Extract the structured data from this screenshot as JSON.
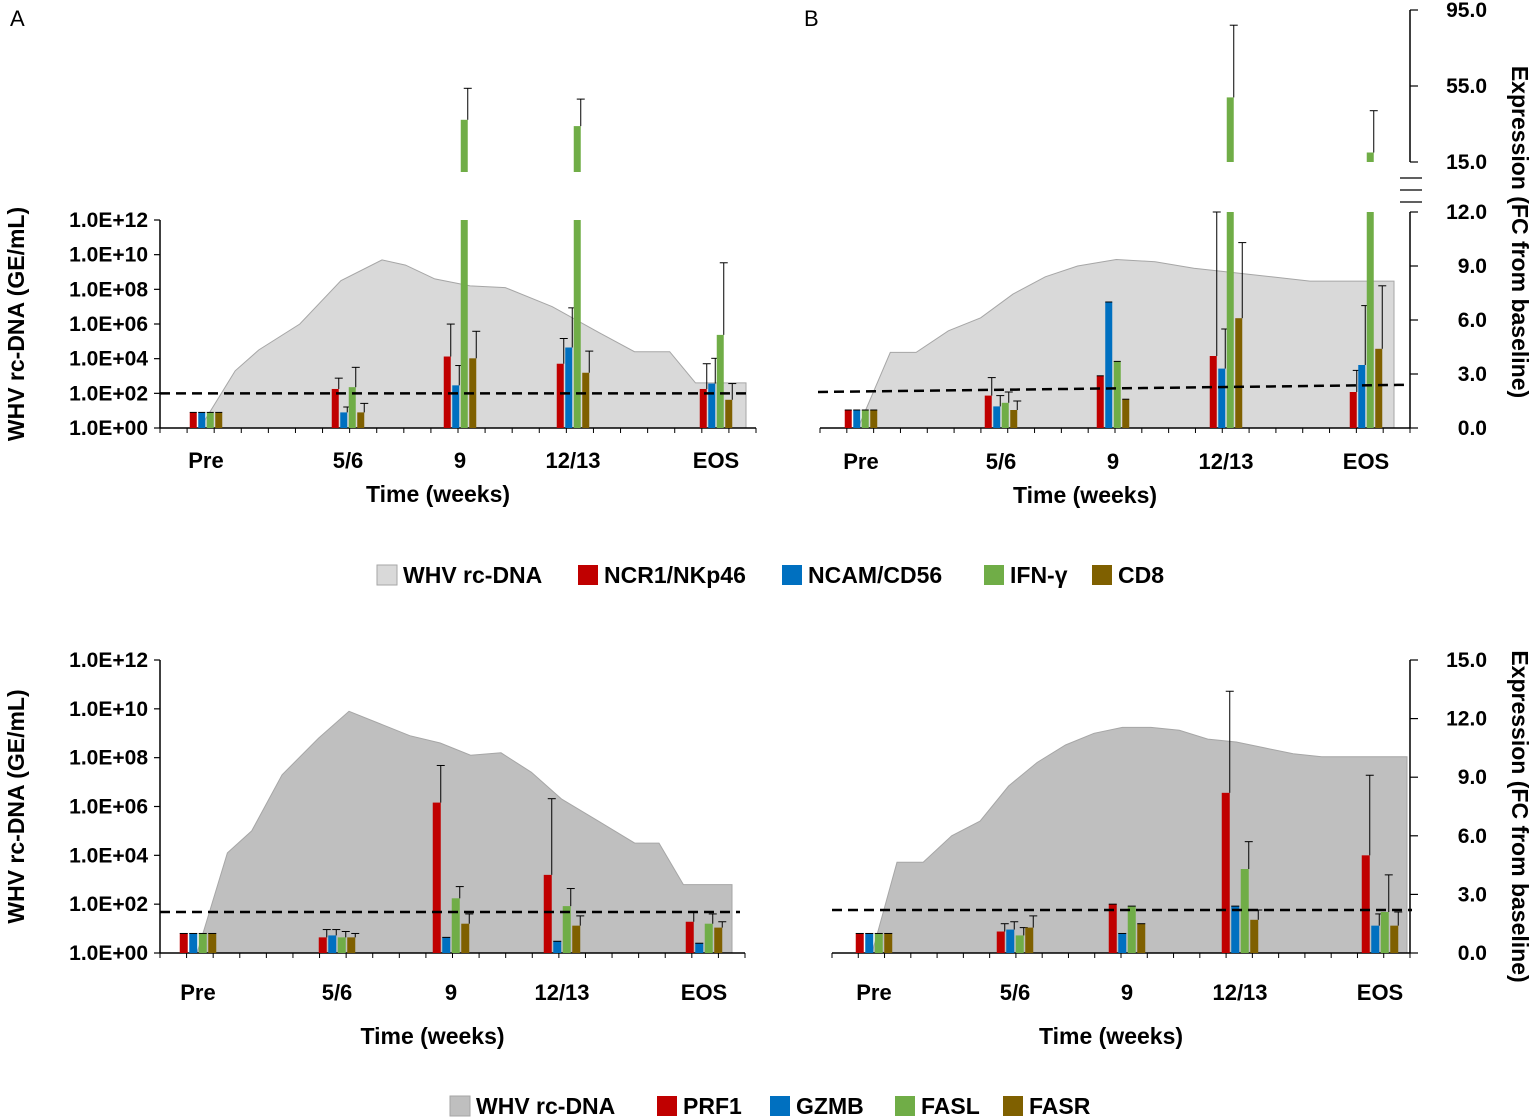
{
  "chart_data": [
    {
      "id": "A-top",
      "type": "bar",
      "panel_letter": "A",
      "xlabel": "Time (weeks)",
      "ylabel": "WHV rc-DNA (GE/mL)",
      "y_scale": "log10",
      "ylim": [
        1,
        1000000000000.0
      ],
      "yticks": [
        "1.0E+00",
        "1.0E+02",
        "1.0E+04",
        "1.0E+06",
        "1.0E+08",
        "1.0E+10",
        "1.0E+12"
      ],
      "categories": [
        "Pre",
        "5/6",
        "9",
        "12/13",
        "EOS"
      ],
      "area": {
        "name": "WHV rc-DNA",
        "color": "#d9d9d9",
        "x": [
          0,
          0.3,
          0.5,
          0.85,
          1.2,
          1.55,
          1.75,
          2.0,
          2.3,
          2.6,
          3.0,
          3.4,
          3.7,
          4.0,
          4.22,
          4.4,
          4.65
        ],
        "log10": [
          0,
          3.3,
          4.5,
          6.0,
          8.5,
          9.7,
          9.4,
          8.6,
          8.2,
          8.1,
          7.0,
          5.5,
          4.4,
          4.4,
          2.6,
          2.6,
          2.6
        ]
      },
      "bar_scale": "log10",
      "bar_scale_note": "bars plotted on primary log axis",
      "baseline_log10": 2,
      "break_region": {
        "gap_low": 12.0,
        "gap_high": 14.2,
        "top_max": 24.5
      },
      "series": [
        {
          "name": "NCR1/NKp46",
          "color": "#c00000",
          "values": [
            1,
            2.3,
            4.1,
            3.7,
            2.3
          ],
          "errors": [
            0,
            0.6,
            1.8,
            1.4,
            1.4
          ]
        },
        {
          "name": "NCAM/CD56",
          "color": "#0070c0",
          "values": [
            1,
            1,
            2.5,
            4.6,
            2.6
          ],
          "errors": [
            0,
            0.3,
            1.1,
            2.2,
            1.4
          ]
        },
        {
          "name": "IFN-γ",
          "color": "#70ad47",
          "values": [
            1,
            2.4,
            20.0,
            19.3,
            5.3
          ],
          "errors": [
            0,
            1.1,
            3.5,
            3.0,
            4.0
          ]
        },
        {
          "name": "CD8",
          "color": "#7f6000",
          "values": [
            1,
            1,
            4.0,
            3.2,
            1.7
          ],
          "errors": [
            0,
            0.5,
            1.5,
            1.2,
            0.9
          ]
        }
      ]
    },
    {
      "id": "B-top",
      "type": "bar",
      "panel_letter": "B",
      "xlabel": "Time (weeks)",
      "y2label": "Expression (FC from baseline)",
      "ylim": [
        0,
        12
      ],
      "y2ticks": [
        "0.0",
        "3.0",
        "6.0",
        "9.0",
        "12.0"
      ],
      "y2_upper_ticks": [
        "15.0",
        "55.0",
        "95.0"
      ],
      "categories": [
        "Pre",
        "5/6",
        "9",
        "12/13",
        "EOS"
      ],
      "area": {
        "name": "WHV rc-DNA",
        "color": "#d9d9d9",
        "x": [
          0,
          0.25,
          0.45,
          0.7,
          0.95,
          1.2,
          1.45,
          1.7,
          2.0,
          2.3,
          2.6,
          2.9,
          3.2,
          3.5,
          3.8,
          4.0,
          4.15
        ],
        "frac": [
          0,
          0.35,
          0.35,
          0.45,
          0.51,
          0.62,
          0.7,
          0.75,
          0.78,
          0.77,
          0.74,
          0.72,
          0.7,
          0.68,
          0.68,
          0.68,
          0.68
        ]
      },
      "baseline": 2.0,
      "baseline_end": 2.4,
      "series": [
        {
          "name": "NCR1/NKp46",
          "color": "#c00000",
          "values": [
            1,
            1.8,
            2.9,
            4.0,
            2.0
          ],
          "errors": [
            0,
            1.0,
            0,
            9.0,
            1.2
          ]
        },
        {
          "name": "NCAM/CD56",
          "color": "#0070c0",
          "values": [
            1,
            1.2,
            7.0,
            3.3,
            3.5
          ],
          "errors": [
            0,
            0.6,
            0,
            2.2,
            3.3
          ]
        },
        {
          "name": "IFN-γ",
          "color": "#70ad47",
          "values": [
            1,
            1.4,
            3.7,
            49,
            20
          ],
          "errors": [
            0,
            0.6,
            0,
            38,
            22
          ]
        },
        {
          "name": "CD8",
          "color": "#7f6000",
          "values": [
            1,
            1.0,
            1.6,
            6.1,
            4.4
          ],
          "errors": [
            0,
            0.5,
            0,
            4.2,
            3.5
          ]
        }
      ]
    },
    {
      "id": "A-bottom",
      "type": "bar",
      "xlabel": "Time (weeks)",
      "ylabel": "WHV rc-DNA (GE/mL)",
      "y_scale": "log10",
      "ylim": [
        1,
        1000000000000.0
      ],
      "yticks": [
        "1.0E+00",
        "1.0E+02",
        "1.0E+04",
        "1.0E+06",
        "1.0E+08",
        "1.0E+10",
        "1.0E+12"
      ],
      "categories": [
        "Pre",
        "5/6",
        "9",
        "12/13",
        "EOS"
      ],
      "area": {
        "name": "WHV rc-DNA",
        "color": "#bfbfbf",
        "x": [
          0,
          0.25,
          0.45,
          0.7,
          1.0,
          1.25,
          1.5,
          1.75,
          2.0,
          2.25,
          2.5,
          2.75,
          3.0,
          3.3,
          3.6,
          3.8,
          4.0,
          4.2,
          4.4
        ],
        "log10": [
          0,
          4.1,
          5.0,
          7.3,
          8.8,
          9.9,
          9.4,
          8.9,
          8.6,
          8.1,
          8.2,
          7.4,
          6.3,
          5.4,
          4.5,
          4.5,
          2.8,
          2.8,
          2.8
        ]
      },
      "bar_scale": "linear_secondary",
      "y2_range": [
        0,
        15
      ],
      "baseline": 2.1,
      "series": [
        {
          "name": "PRF1",
          "color": "#c00000",
          "values": [
            1,
            0.8,
            7.7,
            4.0,
            1.6
          ],
          "errors": [
            0,
            0.4,
            1.9,
            3.9,
            0.5
          ]
        },
        {
          "name": "GZMB",
          "color": "#0070c0",
          "values": [
            1,
            0.9,
            0.8,
            0.6,
            0.5
          ],
          "errors": [
            0,
            0.3,
            0,
            0,
            0
          ]
        },
        {
          "name": "FASL",
          "color": "#70ad47",
          "values": [
            1,
            0.8,
            2.8,
            2.4,
            1.5
          ],
          "errors": [
            0,
            0.3,
            0.6,
            0.9,
            0.5
          ]
        },
        {
          "name": "FASR",
          "color": "#7f6000",
          "values": [
            1,
            0.8,
            1.5,
            1.4,
            1.3
          ],
          "errors": [
            0,
            0.2,
            0.5,
            0.5,
            0.3
          ]
        }
      ]
    },
    {
      "id": "B-bottom",
      "type": "bar",
      "xlabel": "Time (weeks)",
      "y2label": "Expression (FC from baseline)",
      "ylim": [
        0,
        15
      ],
      "y2ticks": [
        "0.0",
        "3.0",
        "6.0",
        "9.0",
        "12.0",
        "15.0"
      ],
      "categories": [
        "Pre",
        "5/6",
        "9",
        "12/13",
        "EOS"
      ],
      "area": {
        "name": "WHV rc-DNA",
        "color": "#bfbfbf",
        "x": [
          0,
          0.22,
          0.45,
          0.7,
          0.95,
          1.2,
          1.45,
          1.7,
          1.95,
          2.2,
          2.45,
          2.7,
          2.95,
          3.2,
          3.45,
          3.7,
          3.95,
          4.2,
          4.45,
          4.7
        ],
        "frac": [
          0,
          0.31,
          0.31,
          0.4,
          0.45,
          0.57,
          0.65,
          0.71,
          0.75,
          0.77,
          0.77,
          0.76,
          0.73,
          0.72,
          0.7,
          0.68,
          0.67,
          0.67,
          0.67,
          0.67
        ]
      },
      "baseline": 2.2,
      "series": [
        {
          "name": "PRF1",
          "color": "#c00000",
          "values": [
            1,
            1.1,
            2.5,
            8.2,
            5.0
          ],
          "errors": [
            0,
            0.4,
            0,
            5.2,
            4.1
          ]
        },
        {
          "name": "GZMB",
          "color": "#0070c0",
          "values": [
            1,
            1.2,
            1.0,
            2.4,
            1.4
          ],
          "errors": [
            0,
            0.4,
            0,
            0,
            0.6
          ]
        },
        {
          "name": "FASL",
          "color": "#70ad47",
          "values": [
            1,
            0.9,
            2.4,
            4.3,
            2.1
          ],
          "errors": [
            0,
            0.4,
            0,
            1.4,
            1.9
          ]
        },
        {
          "name": "FASR",
          "color": "#7f6000",
          "values": [
            1,
            1.3,
            1.5,
            1.7,
            1.4
          ],
          "errors": [
            0,
            0.6,
            0,
            0.5,
            0.7
          ]
        }
      ]
    }
  ],
  "legends": {
    "top": [
      {
        "label": "WHV rc-DNA",
        "color": "#d9d9d9"
      },
      {
        "label": "NCR1/NKp46",
        "color": "#c00000"
      },
      {
        "label": "NCAM/CD56",
        "color": "#0070c0"
      },
      {
        "label": "IFN-γ",
        "color": "#70ad47"
      },
      {
        "label": "CD8",
        "color": "#7f6000"
      }
    ],
    "bottom": [
      {
        "label": "WHV rc-DNA",
        "color": "#bfbfbf"
      },
      {
        "label": "PRF1",
        "color": "#c00000"
      },
      {
        "label": "GZMB",
        "color": "#0070c0"
      },
      {
        "label": "FASL",
        "color": "#70ad47"
      },
      {
        "label": "FASR",
        "color": "#7f6000"
      }
    ]
  }
}
